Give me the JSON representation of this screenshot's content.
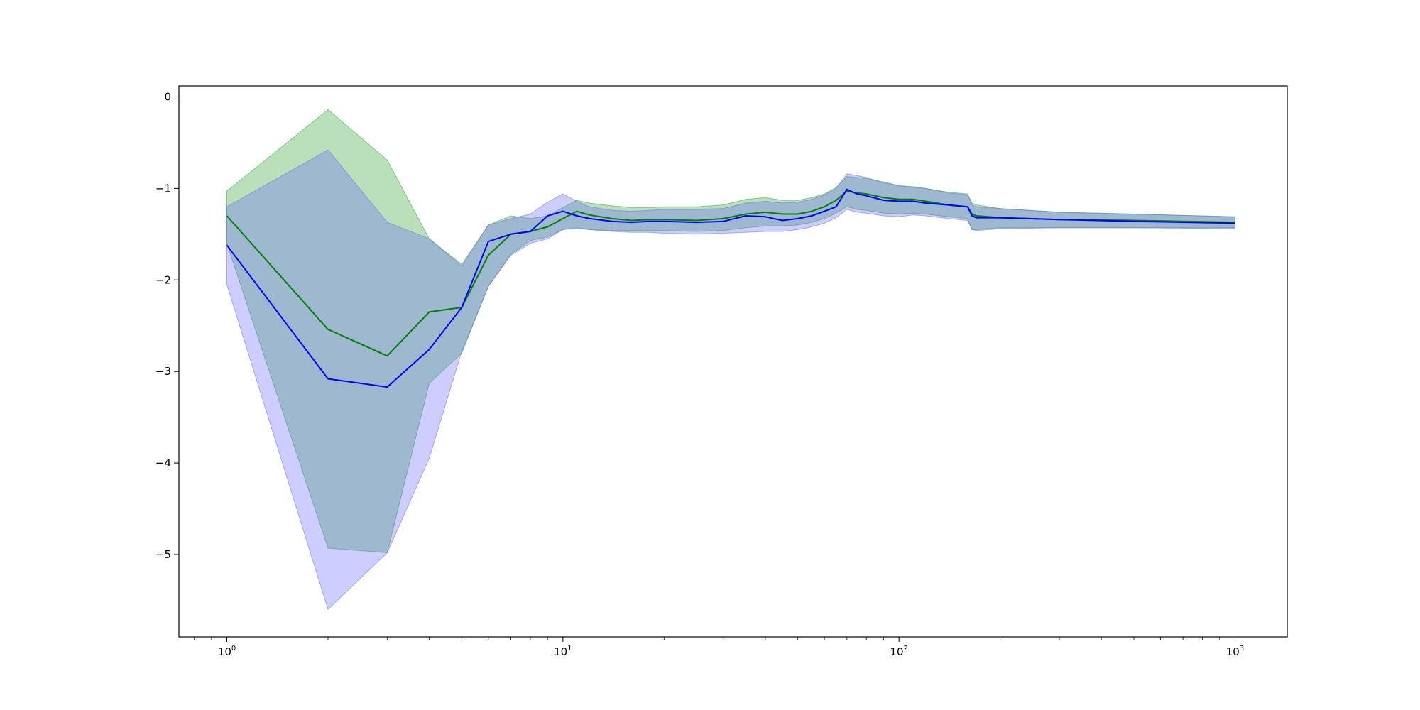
{
  "chart_data": {
    "type": "line",
    "title": "",
    "xlabel": "",
    "ylabel": "",
    "xscale": "log",
    "xlim": [
      0.72,
      1430
    ],
    "ylim": [
      -5.9,
      0.12
    ],
    "grid": false,
    "legend": "none",
    "x_ticks": [
      {
        "base": "10",
        "exp": "0",
        "value": 1
      },
      {
        "base": "10",
        "exp": "1",
        "value": 10
      },
      {
        "base": "10",
        "exp": "2",
        "value": 100
      },
      {
        "base": "10",
        "exp": "3",
        "value": 1000
      }
    ],
    "y_ticks": [
      {
        "label": "0",
        "value": 0
      },
      {
        "label": "−1",
        "value": -1
      },
      {
        "label": "−2",
        "value": -2
      },
      {
        "label": "−3",
        "value": -3
      },
      {
        "label": "−4",
        "value": -4
      },
      {
        "label": "−5",
        "value": -5
      }
    ],
    "series": [
      {
        "color": "#008000",
        "band_color": "#2ca02c",
        "x": [
          1,
          2,
          3,
          4,
          5,
          6,
          7,
          8,
          9,
          10,
          11,
          12,
          14,
          16,
          18,
          20,
          25,
          30,
          35,
          40,
          45,
          50,
          55,
          60,
          65,
          70,
          75,
          80,
          90,
          100,
          110,
          120,
          140,
          160,
          165,
          170,
          200,
          300,
          500,
          1000
        ],
        "y": [
          -1.3,
          -2.54,
          -2.83,
          -2.35,
          -2.3,
          -1.73,
          -1.5,
          -1.47,
          -1.42,
          -1.33,
          -1.25,
          -1.29,
          -1.33,
          -1.35,
          -1.34,
          -1.34,
          -1.35,
          -1.33,
          -1.28,
          -1.26,
          -1.28,
          -1.28,
          -1.25,
          -1.2,
          -1.13,
          -1.03,
          -1.05,
          -1.06,
          -1.1,
          -1.12,
          -1.12,
          -1.14,
          -1.18,
          -1.2,
          -1.28,
          -1.3,
          -1.32,
          -1.34,
          -1.35,
          -1.37
        ],
        "lower": [
          -1.6,
          -4.93,
          -4.98,
          -3.13,
          -2.8,
          -2.07,
          -1.72,
          -1.57,
          -1.53,
          -1.45,
          -1.43,
          -1.45,
          -1.46,
          -1.46,
          -1.46,
          -1.46,
          -1.47,
          -1.46,
          -1.43,
          -1.41,
          -1.41,
          -1.4,
          -1.37,
          -1.33,
          -1.27,
          -1.2,
          -1.23,
          -1.24,
          -1.27,
          -1.28,
          -1.27,
          -1.28,
          -1.31,
          -1.33,
          -1.45,
          -1.45,
          -1.43,
          -1.43,
          -1.43,
          -1.43
        ],
        "upper": [
          -1.03,
          -0.14,
          -0.69,
          -1.55,
          -1.83,
          -1.4,
          -1.3,
          -1.33,
          -1.3,
          -1.21,
          -1.13,
          -1.16,
          -1.19,
          -1.21,
          -1.21,
          -1.2,
          -1.2,
          -1.18,
          -1.12,
          -1.1,
          -1.13,
          -1.13,
          -1.1,
          -1.06,
          -0.99,
          -0.87,
          -0.88,
          -0.89,
          -0.93,
          -0.97,
          -0.98,
          -1.0,
          -1.04,
          -1.06,
          -1.16,
          -1.18,
          -1.22,
          -1.26,
          -1.28,
          -1.31
        ]
      },
      {
        "color": "#0000ff",
        "band_color": "#6666ff",
        "x": [
          1,
          2,
          3,
          4,
          5,
          6,
          7,
          8,
          9,
          10,
          11,
          12,
          14,
          16,
          18,
          20,
          25,
          30,
          35,
          40,
          45,
          50,
          55,
          60,
          65,
          70,
          75,
          80,
          90,
          100,
          110,
          120,
          140,
          160,
          165,
          170,
          200,
          300,
          500,
          1000
        ],
        "y": [
          -1.62,
          -3.08,
          -3.17,
          -2.76,
          -2.3,
          -1.58,
          -1.5,
          -1.47,
          -1.3,
          -1.25,
          -1.3,
          -1.33,
          -1.36,
          -1.37,
          -1.36,
          -1.36,
          -1.37,
          -1.36,
          -1.3,
          -1.31,
          -1.35,
          -1.33,
          -1.3,
          -1.25,
          -1.2,
          -1.01,
          -1.06,
          -1.08,
          -1.13,
          -1.14,
          -1.14,
          -1.16,
          -1.18,
          -1.2,
          -1.3,
          -1.32,
          -1.32,
          -1.34,
          -1.36,
          -1.38
        ],
        "lower": [
          -2.05,
          -5.6,
          -4.98,
          -3.95,
          -2.78,
          -2.07,
          -1.73,
          -1.6,
          -1.55,
          -1.45,
          -1.44,
          -1.45,
          -1.47,
          -1.48,
          -1.48,
          -1.49,
          -1.5,
          -1.49,
          -1.48,
          -1.47,
          -1.47,
          -1.45,
          -1.42,
          -1.38,
          -1.32,
          -1.23,
          -1.26,
          -1.27,
          -1.3,
          -1.31,
          -1.29,
          -1.3,
          -1.33,
          -1.35,
          -1.45,
          -1.46,
          -1.44,
          -1.43,
          -1.43,
          -1.44
        ],
        "upper": [
          -1.2,
          -0.58,
          -1.37,
          -1.55,
          -1.85,
          -1.4,
          -1.33,
          -1.28,
          -1.15,
          -1.06,
          -1.14,
          -1.2,
          -1.24,
          -1.25,
          -1.24,
          -1.23,
          -1.23,
          -1.22,
          -1.16,
          -1.14,
          -1.16,
          -1.15,
          -1.12,
          -1.07,
          -1.0,
          -0.84,
          -0.86,
          -0.88,
          -0.94,
          -0.97,
          -0.99,
          -1.0,
          -1.05,
          -1.07,
          -1.18,
          -1.2,
          -1.22,
          -1.26,
          -1.28,
          -1.31
        ]
      }
    ]
  }
}
